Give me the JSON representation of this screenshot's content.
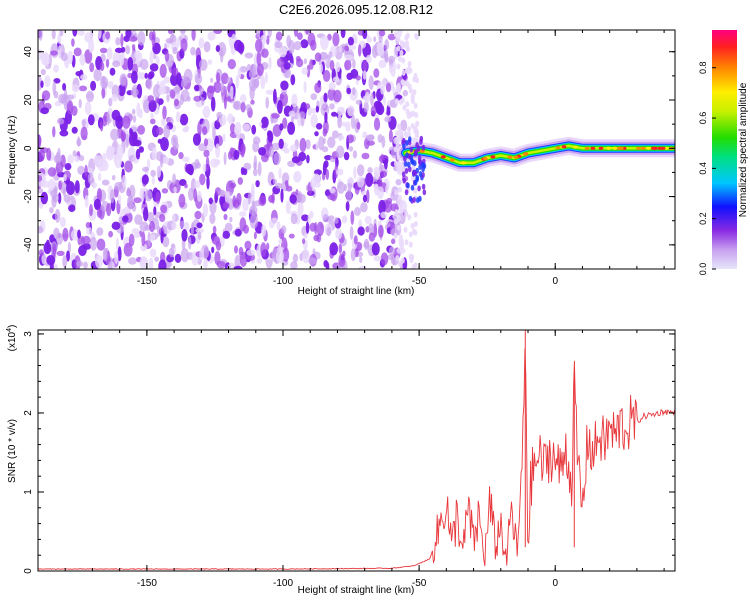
{
  "chart_data": [
    {
      "type": "heatmap",
      "title": "C2E6.2026.095.12.08.R12",
      "xlabel": "Height of straight line (km)",
      "ylabel": "Frequency (Hz)",
      "xlim": [
        -190,
        44
      ],
      "ylim": [
        -50,
        49
      ],
      "xticks": [
        -150,
        -100,
        -50,
        0
      ],
      "yticks": [
        -40,
        -20,
        0,
        20,
        40
      ],
      "colorbar": {
        "label": "Normalized spectral amplitude",
        "range": [
          0,
          0.95
        ],
        "ticks": [
          "0.0",
          "0.2",
          "0.4",
          "0.6",
          "0.8"
        ]
      },
      "noise_region_x": [
        -190,
        -55
      ],
      "ridge": [
        {
          "x": -55,
          "f": -2
        },
        {
          "x": -50,
          "f": -1
        },
        {
          "x": -45,
          "f": -2
        },
        {
          "x": -40,
          "f": -4
        },
        {
          "x": -35,
          "f": -6
        },
        {
          "x": -30,
          "f": -6
        },
        {
          "x": -25,
          "f": -4
        },
        {
          "x": -20,
          "f": -3
        },
        {
          "x": -15,
          "f": -4
        },
        {
          "x": -10,
          "f": -2
        },
        {
          "x": -5,
          "f": -1
        },
        {
          "x": 0,
          "f": 0
        },
        {
          "x": 5,
          "f": 1
        },
        {
          "x": 10,
          "f": 0
        },
        {
          "x": 15,
          "f": 0
        },
        {
          "x": 20,
          "f": 0
        },
        {
          "x": 25,
          "f": 0
        },
        {
          "x": 30,
          "f": 0
        },
        {
          "x": 35,
          "f": 0
        },
        {
          "x": 40,
          "f": 0
        },
        {
          "x": 44,
          "f": 0
        }
      ]
    },
    {
      "type": "line",
      "xlabel": "Height of straight line (km)",
      "ylabel": "SNR (10 * v/v)",
      "yscale_label": "(x10",
      "yscale_exp": "4",
      "xlim": [
        -190,
        44
      ],
      "ylim": [
        0,
        3.05
      ],
      "xticks": [
        -150,
        -100,
        -50,
        0
      ],
      "yticks": [
        0,
        1,
        2,
        3
      ],
      "series": [
        {
          "name": "SNR",
          "color": "#e8383c",
          "x": [
            -190,
            -150,
            -100,
            -60,
            -52,
            -46,
            -43,
            -40,
            -38,
            -36,
            -34,
            -32,
            -30,
            -28,
            -26,
            -24,
            -22,
            -20,
            -18,
            -16,
            -14,
            -12,
            -11,
            -10,
            -9,
            -8,
            -6,
            -4,
            -2,
            0,
            2,
            4,
            6,
            7,
            8,
            10,
            12,
            14,
            16,
            18,
            20,
            22,
            24,
            26,
            28,
            30,
            32,
            34,
            36,
            38,
            40,
            44
          ],
          "values": [
            0.02,
            0.02,
            0.02,
            0.03,
            0.06,
            0.15,
            0.5,
            0.9,
            0.3,
            0.75,
            0.2,
            0.8,
            0.35,
            0.7,
            0.15,
            0.85,
            0.3,
            0.6,
            0.1,
            0.8,
            0.2,
            1.4,
            3.05,
            0.25,
            1.1,
            1.3,
            1.45,
            1.3,
            1.5,
            1.4,
            1.25,
            1.6,
            1.05,
            2.45,
            1.5,
            0.75,
            1.7,
            1.45,
            1.75,
            1.6,
            1.8,
            1.7,
            1.85,
            1.8,
            1.9,
            1.88,
            1.95,
            1.97,
            1.98,
            2.0,
            2.02,
            2.0
          ]
        }
      ]
    }
  ],
  "colors": {
    "noise_dark": "#7a1fe6",
    "noise_mid": "#a24ae8",
    "noise_light": "#c9a2f0",
    "noise_faint": "#e9d8fb",
    "snr_line": "#e8383c"
  }
}
